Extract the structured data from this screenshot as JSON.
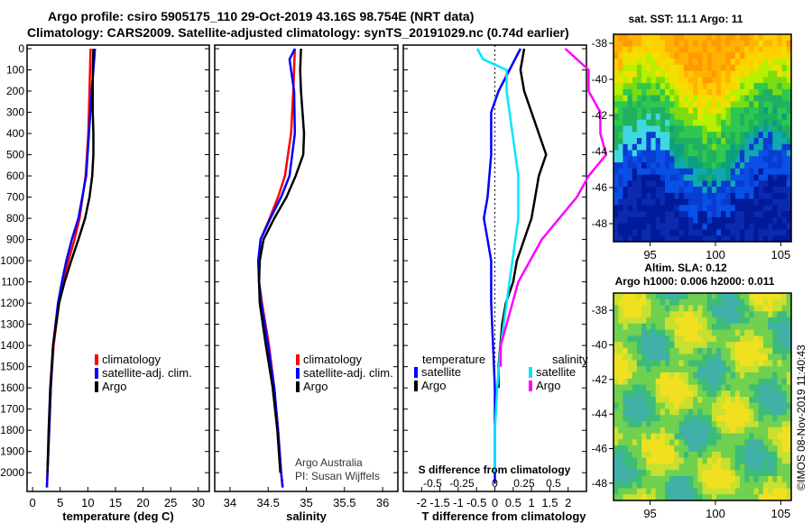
{
  "header": {
    "line1": "Argo profile: csiro 5905175_110 29-Oct-2019 43.16S 98.754E (NRT data)",
    "line2": "Climatology: CARS2009. Satellite-adjusted climatology: synTS_20191029.nc (0.74d earlier)"
  },
  "credit": {
    "org": "Argo Australia",
    "pi": "PI: Susan Wijffels"
  },
  "watermark": "©IMOS 08-Nov-2019 11:40:43",
  "colors": {
    "climatology": "#ff0000",
    "satellite": "#0000ff",
    "argo": "#000000",
    "sat_salinity": "#00e5ff",
    "argo_salinity": "#ff00ff"
  },
  "chart_data": [
    {
      "id": "temperature",
      "type": "line",
      "xlabel": "temperature (deg C)",
      "xlim": [
        -1,
        32
      ],
      "xticks": [
        "0",
        "5",
        "10",
        "15",
        "20",
        "25",
        "30"
      ],
      "xtick_values": [
        0,
        5,
        10,
        15,
        20,
        25,
        30
      ],
      "ylim": [
        0,
        2080
      ],
      "yticks": [
        "0",
        "100",
        "200",
        "300",
        "400",
        "500",
        "600",
        "700",
        "800",
        "900",
        "1000",
        "1100",
        "1200",
        "1300",
        "1400",
        "1500",
        "1600",
        "1700",
        "1800",
        "1900",
        "2000"
      ],
      "legend": [
        "climatology",
        "satellite-adj. clim.",
        "Argo"
      ],
      "series": [
        {
          "name": "climatology",
          "color": "#ff0000",
          "depth": [
            0,
            100,
            200,
            400,
            600,
            800,
            900,
            1000,
            1100,
            1200,
            1400,
            1600,
            1800,
            2000,
            2070
          ],
          "values": [
            10.5,
            10.4,
            10.3,
            10.1,
            9.6,
            8.5,
            7.6,
            6.5,
            5.6,
            4.8,
            3.8,
            3.3,
            3.0,
            2.7,
            2.6
          ]
        },
        {
          "name": "satellite-adj. clim.",
          "color": "#0000ff",
          "depth": [
            0,
            100,
            200,
            400,
            600,
            800,
            900,
            1000,
            1100,
            1200,
            1400,
            1600,
            1800,
            2000,
            2070
          ],
          "values": [
            11.3,
            11.0,
            10.7,
            10.2,
            9.7,
            8.3,
            7.1,
            6.1,
            5.3,
            4.6,
            3.7,
            3.3,
            3.0,
            2.7,
            2.6
          ]
        },
        {
          "name": "Argo",
          "color": "#000000",
          "depth": [
            0,
            100,
            200,
            300,
            400,
            500,
            600,
            700,
            800,
            900,
            1000,
            1100,
            1200,
            1400,
            1600,
            1800,
            2000
          ],
          "values": [
            11.0,
            10.9,
            10.9,
            10.9,
            11.0,
            11.0,
            10.8,
            10.3,
            9.5,
            8.3,
            7.0,
            5.8,
            4.8,
            3.7,
            3.2,
            2.9,
            2.7
          ]
        }
      ]
    },
    {
      "id": "salinity",
      "type": "line",
      "xlabel": "salinity",
      "xlim": [
        33.8,
        36.2
      ],
      "xticks": [
        "34",
        "34.5",
        "35",
        "35.5",
        "36"
      ],
      "xtick_values": [
        34,
        34.5,
        35,
        35.5,
        36
      ],
      "ylim": [
        0,
        2080
      ],
      "legend": [
        "climatology",
        "satellite-adj. clim.",
        "Argo"
      ],
      "series": [
        {
          "name": "climatology",
          "color": "#ff0000",
          "depth": [
            0,
            200,
            400,
            600,
            700,
            800,
            900,
            1000,
            1100,
            1200,
            1400,
            1600,
            1800,
            2000,
            2070
          ],
          "values": [
            34.85,
            34.83,
            34.8,
            34.72,
            34.63,
            34.52,
            34.4,
            34.38,
            34.38,
            34.42,
            34.51,
            34.58,
            34.63,
            34.67,
            34.69
          ]
        },
        {
          "name": "satellite-adj. clim.",
          "color": "#0000ff",
          "depth": [
            0,
            50,
            100,
            200,
            400,
            600,
            700,
            800,
            900,
            1000,
            1100,
            1200,
            1400,
            1600,
            1800,
            2000,
            2070
          ],
          "values": [
            34.85,
            34.78,
            34.8,
            34.84,
            34.85,
            34.78,
            34.67,
            34.53,
            34.4,
            34.37,
            34.38,
            34.41,
            34.5,
            34.58,
            34.63,
            34.67,
            34.69
          ]
        },
        {
          "name": "Argo",
          "color": "#000000",
          "depth": [
            0,
            100,
            200,
            300,
            400,
            500,
            600,
            700,
            800,
            900,
            1000,
            1100,
            1200,
            1400,
            1600,
            1800,
            2000
          ],
          "values": [
            34.93,
            34.92,
            34.93,
            34.95,
            34.97,
            34.96,
            34.86,
            34.74,
            34.58,
            34.44,
            34.39,
            34.38,
            34.39,
            34.47,
            34.56,
            34.62,
            34.66
          ]
        }
      ]
    },
    {
      "id": "differences",
      "type": "line",
      "xlabel": "T difference from climatology",
      "xlabel2": "S difference from climatology",
      "xlim": [
        -2.5,
        2.5
      ],
      "xticks": [
        "-2",
        "-1.5",
        "-1",
        "-0.5",
        "0",
        "0.5",
        "1",
        "1.5",
        "2"
      ],
      "xtick_values": [
        -2,
        -1.5,
        -1,
        -0.5,
        0,
        0.5,
        1,
        1.5,
        2
      ],
      "s_ticks": [
        "-0.5",
        "-0.25",
        "0",
        "0.25",
        "0.5"
      ],
      "s_tick_values_on_t_axis": [
        -1.7,
        -0.9,
        0,
        0.8,
        1.6
      ],
      "ylim": [
        0,
        2080
      ],
      "legend_t_title": "temperature",
      "legend_s_title": "salinity",
      "legend_t": [
        "satellite",
        "Argo"
      ],
      "legend_s": [
        "satellite",
        "Argo"
      ],
      "series": [
        {
          "name": "T satellite",
          "color": "#0000ff",
          "depth": [
            0,
            100,
            200,
            300,
            400,
            500,
            700,
            800,
            900,
            1000,
            1200,
            1400,
            1600,
            1800,
            2000,
            2050
          ],
          "values": [
            0.7,
            0.4,
            0.1,
            -0.1,
            -0.1,
            -0.1,
            -0.2,
            -0.3,
            -0.2,
            -0.1,
            -0.1,
            -0.05,
            0,
            0,
            0,
            0
          ]
        },
        {
          "name": "T Argo",
          "color": "#000000",
          "depth": [
            0,
            100,
            200,
            300,
            400,
            500,
            600,
            700,
            800,
            900,
            1000,
            1100,
            1200,
            1300,
            1400,
            1500,
            1600
          ],
          "values": [
            0.8,
            0.7,
            0.8,
            1.0,
            1.2,
            1.4,
            1.2,
            1.1,
            1.0,
            0.8,
            0.6,
            0.5,
            0.3,
            0.2,
            0.15,
            0.1,
            0.1
          ]
        },
        {
          "name": "S satellite",
          "color": "#00e5ff",
          "depth": [
            0,
            50,
            100,
            200,
            400,
            600,
            800,
            1000,
            1200,
            1400,
            1600,
            1800,
            2000
          ],
          "values": [
            -0.15,
            -0.1,
            0.1,
            0.1,
            0.15,
            0.2,
            0.2,
            0.15,
            0.1,
            0.05,
            0.02,
            0,
            0
          ]
        },
        {
          "name": "S Argo",
          "color": "#ff00ff",
          "depth": [
            0,
            100,
            200,
            300,
            400,
            500,
            600,
            700,
            800,
            900,
            1000,
            1100,
            1200,
            1300,
            1400,
            1500
          ],
          "values": [
            0.6,
            0.8,
            0.8,
            0.9,
            0.9,
            0.95,
            0.8,
            0.7,
            0.55,
            0.4,
            0.3,
            0.2,
            0.15,
            0.1,
            0.05,
            0.05
          ]
        }
      ]
    },
    {
      "id": "sst_map",
      "type": "heatmap",
      "title": "sat. SST: 11.1 Argo: 11",
      "xticks": [
        "95",
        "100",
        "105"
      ],
      "xtick_values": [
        95,
        100,
        105
      ],
      "yticks": [
        "-38",
        "-40",
        "-42",
        "-44",
        "-46",
        "-48"
      ],
      "ytick_values": [
        -38,
        -40,
        -42,
        -44,
        -46,
        -48
      ],
      "xlim": [
        92.2,
        105.8
      ],
      "ylim": [
        -49.0,
        -37.5
      ]
    },
    {
      "id": "sla_map",
      "type": "heatmap",
      "title": "Altim. SLA: 0.12",
      "subtitle": "Argo h1000: 0.006 h2000: 0.011",
      "xticks": [
        "95",
        "100",
        "105"
      ],
      "xtick_values": [
        95,
        100,
        105
      ],
      "yticks": [
        "-38",
        "-40",
        "-42",
        "-44",
        "-46",
        "-48"
      ],
      "ytick_values": [
        -38,
        -40,
        -42,
        -44,
        -46,
        -48
      ],
      "xlim": [
        92.2,
        105.8
      ],
      "ylim": [
        -49.0,
        -37.0
      ]
    }
  ]
}
